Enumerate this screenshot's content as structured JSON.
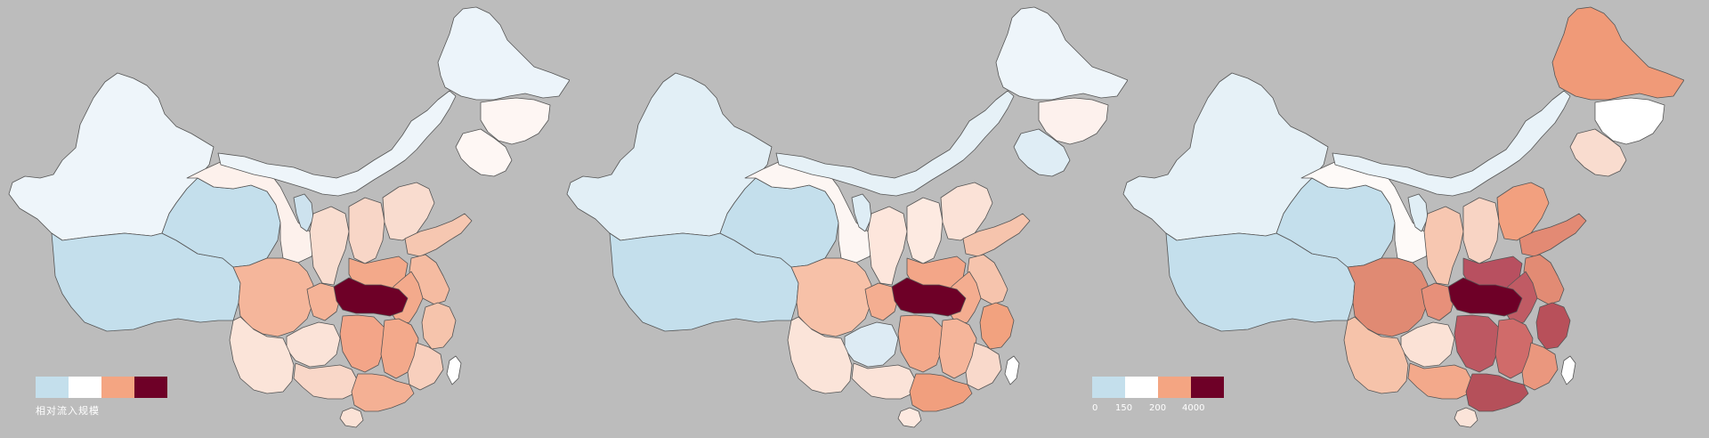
{
  "colors": {
    "background": "#bcbcbc",
    "border": "#555555",
    "bin0": "#c4dfec",
    "bin1": "#ffffff",
    "bin2": "#f4a582",
    "bin3": "#6e0027"
  },
  "legend_left": {
    "title": "相对流入规模",
    "swatches": [
      "#c4dfec",
      "#ffffff",
      "#f4a582",
      "#6e0027"
    ]
  },
  "legend_right": {
    "ticks": [
      "0",
      "150",
      "200",
      "4000"
    ],
    "swatches": [
      "#c4dfec",
      "#ffffff",
      "#f4a582",
      "#6e0027"
    ]
  },
  "maps": [
    {
      "id": "map-1",
      "regions": {
        "xinjiang": "#eef5fa",
        "tibet": "#c4dfec",
        "qinghai": "#c4dfec",
        "gansu": "#fdf1ec",
        "inner_mongolia": "#eef5fa",
        "heilongjiang": "#ecf4fa",
        "jilin": "#fef6f3",
        "liaoning": "#fef7f4",
        "ningxia": "#cde2ee",
        "shaanxi": "#f9ddd0",
        "shanxi": "#f8d6c7",
        "hebei": "#f9dccf",
        "shandong": "#f6c7b1",
        "henan": "#f3a98a",
        "anhui": "#f3aa8c",
        "jiangsu": "#f5bba1",
        "zhejiang": "#f6c4ac",
        "sichuan": "#f5b69b",
        "chongqing": "#f5b397",
        "hubei": "#6e0027",
        "hunan": "#f3a588",
        "jiangxi": "#f3a98b",
        "guizhou": "#fbe3d8",
        "yunnan": "#fbe4d9",
        "guangxi": "#f9d7c8",
        "guangdong": "#f4b094",
        "fujian": "#f8cfbd",
        "hainan": "#fbe2d6",
        "taiwan": "#ffffff"
      }
    },
    {
      "id": "map-2",
      "regions": {
        "xinjiang": "#e2eff6",
        "tibet": "#c4dfec",
        "qinghai": "#c4dfec",
        "gansu": "#fdf6f3",
        "inner_mongolia": "#e6f1f7",
        "heilongjiang": "#eef5fa",
        "jilin": "#fdf1ed",
        "liaoning": "#dfedf5",
        "ningxia": "#deedf5",
        "shaanxi": "#fde6dc",
        "shanxi": "#fdeae1",
        "hebei": "#fbe2d7",
        "shandong": "#f6c4ad",
        "henan": "#f3a688",
        "anhui": "#f4ad90",
        "jiangsu": "#f6c4ad",
        "zhejiang": "#f2a27f",
        "sichuan": "#f7c1a8",
        "chongqing": "#f4ae91",
        "hubei": "#6e0027",
        "hunan": "#f3a98b",
        "jiangxi": "#f5b59a",
        "guizhou": "#ddebf4",
        "yunnan": "#fbe4d9",
        "guangxi": "#fbe3d8",
        "guangdong": "#f19f7e",
        "fujian": "#f9d9cb",
        "hainan": "#fde9e0",
        "taiwan": "#ffffff"
      }
    },
    {
      "id": "map-3",
      "regions": {
        "xinjiang": "#e6f1f7",
        "tibet": "#c4dfec",
        "qinghai": "#c4dfec",
        "gansu": "#fefaf8",
        "inner_mongolia": "#e9f3f9",
        "heilongjiang": "#f09a78",
        "jilin": "#ffffff",
        "liaoning": "#f9dccf",
        "ningxia": "#e0eef5",
        "shaanxi": "#f7c7b1",
        "shanxi": "#f8d4c4",
        "hebei": "#f2a07f",
        "shandong": "#e38a74",
        "henan": "#b85060",
        "anhui": "#c05b64",
        "jiangsu": "#e28b74",
        "zhejiang": "#b8505a",
        "sichuan": "#e08a73",
        "chongqing": "#e7907a",
        "hubei": "#6e0027",
        "hunan": "#bd5862",
        "jiangxi": "#d06b6a",
        "guizhou": "#fbe2d6",
        "yunnan": "#f6c3aa",
        "guangxi": "#f3a98b",
        "guangdong": "#b5505a",
        "fujian": "#ea977e",
        "hainan": "#fbe4d9",
        "taiwan": "#ffffff"
      }
    }
  ]
}
